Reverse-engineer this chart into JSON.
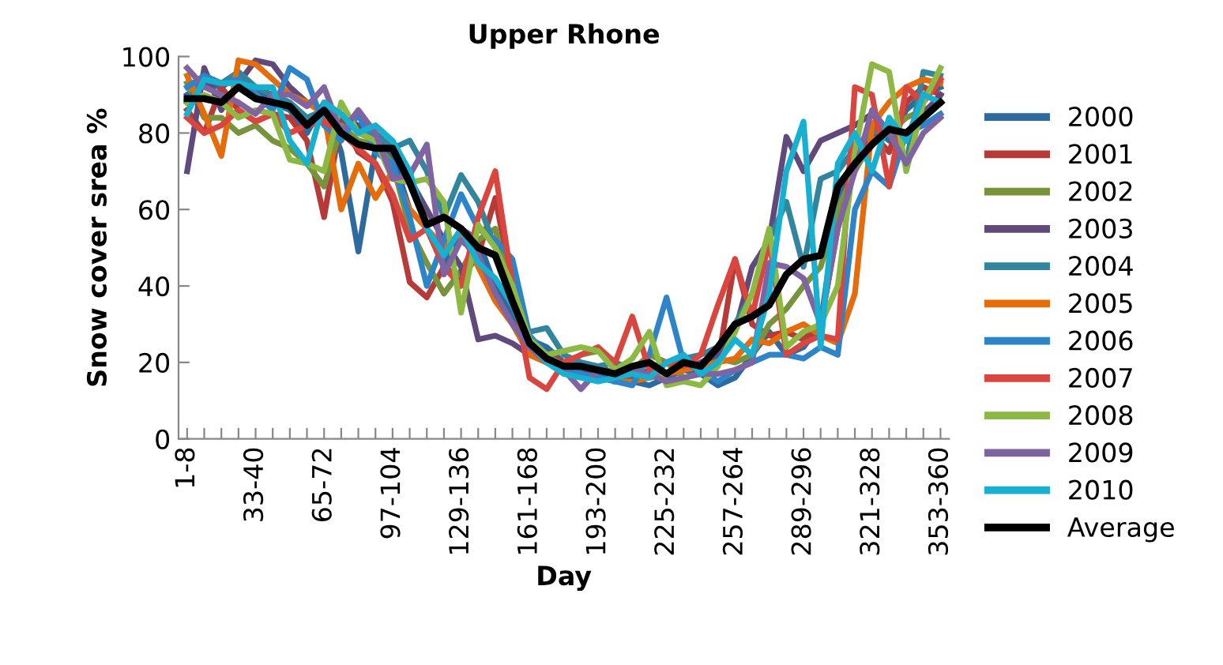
{
  "chart_data": {
    "type": "line",
    "title": "Upper Rhone",
    "xlabel": "Day",
    "ylabel": "Snow cover srea %",
    "categories": [
      "1-8",
      null,
      null,
      null,
      "33-40",
      null,
      null,
      null,
      "65-72",
      null,
      null,
      null,
      "97-104",
      null,
      null,
      null,
      "129-136",
      null,
      null,
      null,
      "161-168",
      null,
      null,
      null,
      "193-200",
      null,
      null,
      null,
      "225-232",
      null,
      null,
      null,
      "257-264",
      null,
      null,
      null,
      "289-296",
      null,
      null,
      null,
      "321-328",
      null,
      null,
      null,
      "353-360"
    ],
    "ylim": [
      0,
      100
    ],
    "yticks": [
      0,
      20,
      40,
      60,
      80,
      100
    ],
    "grid": false,
    "legend": "right",
    "marker": "none",
    "line_style": "solid",
    "series": [
      {
        "name": "2000",
        "color": "#2c6aa0",
        "values": [
          90,
          93,
          92,
          95,
          92,
          88,
          86,
          80,
          88,
          75,
          49,
          76,
          74,
          60,
          55,
          45,
          55,
          52,
          40,
          32,
          26,
          24,
          20,
          18,
          17,
          16,
          15,
          14,
          16,
          18,
          17,
          14,
          16,
          22,
          28,
          22,
          24,
          30,
          62,
          75,
          82,
          78,
          86,
          90,
          92
        ]
      },
      {
        "name": "2001",
        "color": "#b63a37",
        "values": [
          86,
          80,
          92,
          86,
          83,
          85,
          84,
          78,
          58,
          84,
          75,
          72,
          62,
          41,
          37,
          45,
          42,
          48,
          63,
          40,
          25,
          22,
          20,
          19,
          18,
          17,
          18,
          16,
          17,
          18,
          19,
          20,
          47,
          30,
          27,
          28,
          26,
          30,
          55,
          72,
          80,
          75,
          88,
          92,
          90
        ]
      },
      {
        "name": "2002",
        "color": "#77933c",
        "values": [
          93,
          84,
          84,
          80,
          82,
          78,
          76,
          72,
          66,
          82,
          78,
          77,
          72,
          55,
          46,
          38,
          44,
          52,
          55,
          36,
          24,
          22,
          19,
          22,
          23,
          20,
          18,
          22,
          20,
          16,
          17,
          21,
          20,
          22,
          30,
          34,
          40,
          45,
          60,
          70,
          78,
          80,
          84,
          86,
          88
        ]
      },
      {
        "name": "2003",
        "color": "#604a7b",
        "values": [
          70,
          97,
          86,
          93,
          99,
          98,
          92,
          88,
          86,
          84,
          82,
          78,
          75,
          68,
          60,
          52,
          45,
          26,
          27,
          25,
          22,
          20,
          18,
          17,
          19,
          17,
          16,
          18,
          17,
          18,
          20,
          22,
          28,
          45,
          52,
          79,
          70,
          78,
          80,
          82,
          85,
          80,
          78,
          85,
          90
        ]
      },
      {
        "name": "2004",
        "color": "#31859c",
        "values": [
          88,
          95,
          93,
          96,
          92,
          90,
          88,
          84,
          86,
          85,
          80,
          80,
          76,
          78,
          70,
          58,
          69,
          62,
          50,
          35,
          28,
          29,
          22,
          20,
          19,
          20,
          18,
          16,
          20,
          21,
          22,
          24,
          30,
          38,
          52,
          62,
          45,
          68,
          70,
          76,
          80,
          82,
          72,
          96,
          95
        ]
      },
      {
        "name": "2005",
        "color": "#e46c0a",
        "values": [
          95,
          85,
          74,
          99,
          98,
          94,
          90,
          88,
          85,
          60,
          72,
          63,
          70,
          60,
          55,
          50,
          54,
          45,
          36,
          30,
          22,
          20,
          18,
          17,
          null,
          15,
          15,
          16,
          17,
          18,
          19,
          20,
          21,
          26,
          25,
          28,
          30,
          27,
          25,
          38,
          82,
          88,
          92,
          94,
          93
        ]
      },
      {
        "name": "2006",
        "color": "#2e84c8",
        "values": [
          92,
          95,
          93,
          94,
          90,
          86,
          97,
          94,
          82,
          78,
          85,
          75,
          72,
          58,
          40,
          52,
          64,
          55,
          52,
          47,
          27,
          22,
          18,
          17,
          16,
          15,
          14,
          22,
          37,
          20,
          18,
          15,
          18,
          20,
          22,
          22,
          21,
          24,
          22,
          60,
          70,
          66,
          80,
          82,
          85
        ]
      },
      {
        "name": "2007",
        "color": "#d9453f",
        "values": [
          84,
          80,
          82,
          86,
          83,
          85,
          80,
          82,
          83,
          80,
          76,
          72,
          64,
          52,
          55,
          45,
          40,
          58,
          70,
          40,
          16,
          13,
          20,
          22,
          24,
          20,
          32,
          18,
          20,
          19,
          22,
          35,
          47,
          32,
          52,
          22,
          25,
          27,
          26,
          92,
          90,
          66,
          92,
          88,
          94
        ]
      },
      {
        "name": "2008",
        "color": "#8db843",
        "values": [
          88,
          90,
          88,
          84,
          86,
          85,
          73,
          72,
          70,
          88,
          80,
          78,
          68,
          67,
          68,
          62,
          33,
          56,
          50,
          40,
          26,
          22,
          23,
          24,
          23,
          18,
          21,
          28,
          14,
          15,
          14,
          19,
          28,
          38,
          55,
          24,
          28,
          30,
          40,
          75,
          98,
          96,
          70,
          88,
          97
        ]
      },
      {
        "name": "2009",
        "color": "#8064a2",
        "values": [
          97,
          92,
          90,
          88,
          85,
          90,
          90,
          87,
          92,
          80,
          86,
          80,
          68,
          69,
          77,
          43,
          52,
          48,
          38,
          30,
          24,
          20,
          18,
          13,
          18,
          17,
          18,
          17,
          15,
          16,
          17,
          17,
          18,
          20,
          46,
          45,
          42,
          30,
          55,
          70,
          86,
          80,
          72,
          80,
          84
        ]
      },
      {
        "name": "2010",
        "color": "#17b0d0",
        "values": [
          85,
          94,
          93,
          93,
          92,
          92,
          78,
          72,
          88,
          85,
          80,
          82,
          78,
          70,
          55,
          48,
          55,
          46,
          42,
          35,
          25,
          20,
          17,
          16,
          15,
          16,
          17,
          16,
          20,
          22,
          17,
          20,
          26,
          22,
          38,
          70,
          83,
          24,
          72,
          80,
          70,
          84,
          78,
          90,
          88
        ]
      },
      {
        "name": "Average",
        "color": "#000000",
        "values": [
          89,
          89,
          88,
          92,
          89,
          88,
          87,
          82,
          86,
          80,
          77,
          76,
          76,
          67,
          56,
          58,
          55,
          50,
          48,
          36,
          25,
          21,
          19,
          19,
          18,
          17,
          19,
          20,
          17,
          20,
          19,
          24,
          30,
          32,
          35,
          43,
          47,
          48,
          66,
          72,
          77,
          81,
          80,
          84,
          88
        ]
      }
    ]
  }
}
